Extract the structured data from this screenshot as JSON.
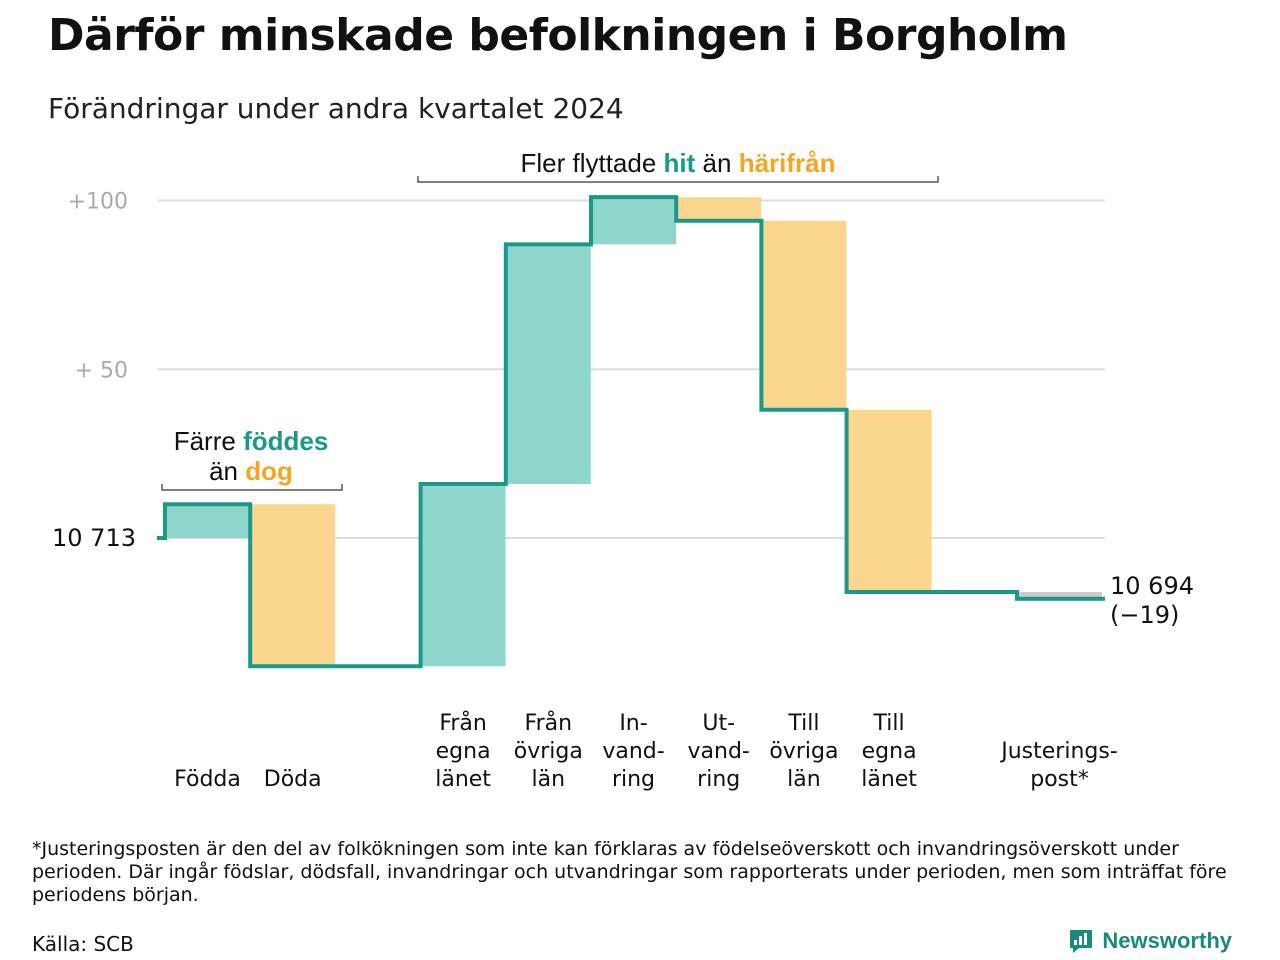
{
  "title": "Därför minskade befolkningen i Borgholm",
  "subtitle": "Förändringar under andra kvartalet 2024",
  "annotations": {
    "moves_prefix": "Fler flyttade",
    "moves_in": "hit",
    "moves_mid": "än",
    "moves_out": "härifrån",
    "births_prefix": "Färre",
    "births_in": "föddes",
    "births_mid": "än",
    "births_out": "dog"
  },
  "chart_data": {
    "type": "waterfall",
    "title": "Därför minskade befolkningen i Borgholm",
    "subtitle": "Förändringar under andra kvartalet 2024",
    "start_value": 10713,
    "start_label": "10  713",
    "end_value": 10694,
    "end_label": "10 694",
    "end_change_label": "(−19)",
    "y_axis": {
      "unit": "change relative to start",
      "ylim": [
        -52,
        110
      ],
      "ticks": [
        {
          "value": 100,
          "label": "+100"
        },
        {
          "value": 50,
          "label": "+  50"
        },
        {
          "value": 0,
          "label": ""
        }
      ]
    },
    "grid": true,
    "categories": [
      {
        "label": "Födda",
        "value": 10,
        "kind": "in"
      },
      {
        "label": "Döda",
        "value": -48,
        "kind": "out"
      },
      {
        "label": "",
        "value": 0,
        "kind": "spacer"
      },
      {
        "label": "Från\negna\nlänet",
        "value": 54,
        "kind": "in"
      },
      {
        "label": "Från\növriga\nlän",
        "value": 71,
        "kind": "in"
      },
      {
        "label": "In-\nvand-\nring",
        "value": 14,
        "kind": "in"
      },
      {
        "label": "Ut-\nvand-\nring",
        "value": -7,
        "kind": "out"
      },
      {
        "label": "Till\növriga\nlän",
        "value": -56,
        "kind": "out"
      },
      {
        "label": "Till\negna\nlänet",
        "value": -54,
        "kind": "out"
      },
      {
        "label": "",
        "value": 0,
        "kind": "spacer"
      },
      {
        "label": "Justerings-\npost*",
        "value": -2,
        "kind": "adjust"
      }
    ],
    "colors": {
      "in": "#8fd6cc",
      "out": "#fad68f",
      "adjust": "#cccccc",
      "line": "#1a9988",
      "grid": "#dddddd"
    }
  },
  "footnote": "*Justeringsposten är den del av folkökningen som inte kan förklaras av födelseöverskott och invandringsöverskott under perioden. Där ingår födslar, dödsfall, invandringar och utvandringar som rapporterats under perioden, men som inträffat före periodens början.",
  "source": "Källa: SCB",
  "brand": {
    "name": "Newsworthy",
    "icon": "chat-bar-chart-icon"
  }
}
